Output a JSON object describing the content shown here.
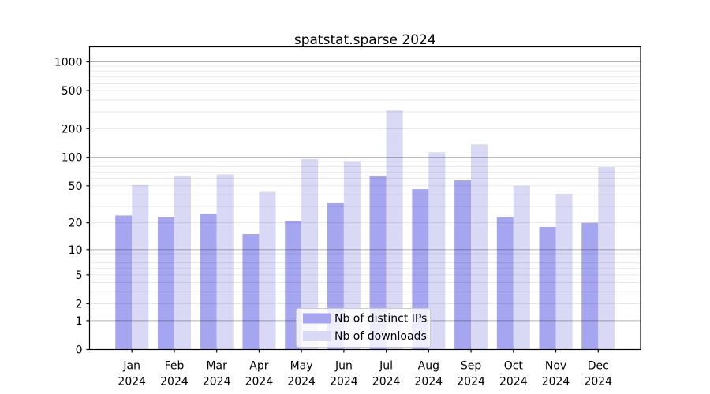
{
  "figure": {
    "background": "#ffffff"
  },
  "chart_data": {
    "type": "bar",
    "title": "spatstat.sparse 2024",
    "categories": [
      "Jan 2024",
      "Feb 2024",
      "Mar 2024",
      "Apr 2024",
      "May 2024",
      "Jun 2024",
      "Jul 2024",
      "Aug 2024",
      "Sep 2024",
      "Oct 2024",
      "Nov 2024",
      "Dec 2024"
    ],
    "x_months": [
      "Jan",
      "Feb",
      "Mar",
      "Apr",
      "May",
      "Jun",
      "Jul",
      "Aug",
      "Sep",
      "Oct",
      "Nov",
      "Dec"
    ],
    "x_year": "2024",
    "series": [
      {
        "name": "Nb of distinct IPs",
        "color": "#a6a6f0",
        "values": [
          24,
          23,
          25,
          15,
          21,
          33,
          64,
          46,
          57,
          23,
          18,
          20
        ]
      },
      {
        "name": "Nb of downloads",
        "color": "#d9d9f6",
        "values": [
          51,
          64,
          66,
          43,
          96,
          91,
          310,
          113,
          137,
          50,
          41,
          79
        ]
      }
    ],
    "yaxis": {
      "scale": "log1p",
      "tick_values": [
        0,
        1,
        2,
        5,
        10,
        20,
        50,
        100,
        200,
        500,
        1000
      ],
      "tick_labels": [
        "0",
        "1",
        "2",
        "5",
        "10",
        "20",
        "50",
        "100",
        "200",
        "500",
        "1000"
      ],
      "major_grid_values": [
        1,
        10,
        100,
        1000
      ],
      "minor_grid_decades": [
        1,
        10,
        100
      ],
      "range": [
        0,
        1000
      ]
    },
    "grid": {
      "major_color": "rgba(0,0,0,0.30)",
      "minor_color": "rgba(0,0,0,0.09)"
    },
    "legend_position": "lower center",
    "xlabel": "",
    "ylabel": ""
  }
}
